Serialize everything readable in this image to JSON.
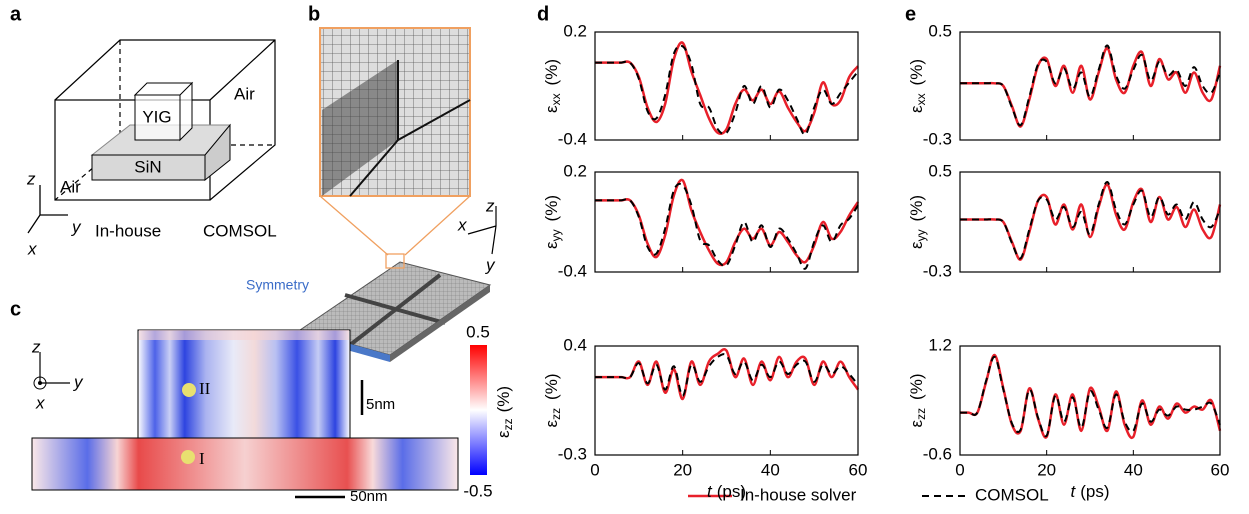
{
  "panel_a": {
    "label": "a",
    "box_top": "YIG",
    "slab": "SiN",
    "air_top": "Air",
    "air_bottom": "Air",
    "axes": [
      "z",
      "y",
      "x"
    ],
    "left_caption": "In-house",
    "right_caption": "COMSOL"
  },
  "panel_b": {
    "label": "b",
    "axes": [
      "z",
      "x",
      "y"
    ],
    "symmetry": "Symmetry"
  },
  "panel_c": {
    "label": "c",
    "axes": [
      "z",
      "y",
      "x"
    ],
    "point_top": "II",
    "point_bottom": "I",
    "scale_vertical": "5nm",
    "scale_horizontal": "50nm",
    "colorbar_max": "0.5",
    "colorbar_min": "-0.5",
    "colorbar_label": {
      "symbol": "ε",
      "sub": "zz",
      "unit": "(%)"
    }
  },
  "chart_panels": [
    "d",
    "e"
  ],
  "chart_data": [
    {
      "type": "line",
      "ylabel": {
        "symbol": "ε",
        "sub": "xx",
        "unit": "(%)"
      },
      "x": [
        0,
        2,
        4,
        6,
        8,
        10,
        12,
        14,
        16,
        18,
        20,
        22,
        24,
        26,
        28,
        30,
        32,
        34,
        36,
        38,
        40,
        42,
        44,
        46,
        48,
        50,
        52,
        54,
        56,
        58,
        60
      ],
      "xlim": [
        0,
        60
      ],
      "xticks": [
        0,
        20,
        40,
        60
      ],
      "ylim": [
        -0.4,
        0.2
      ],
      "yticks": [
        -0.4,
        0.2
      ],
      "series": [
        {
          "name": "In-house solver",
          "color": "#e8202a",
          "values": [
            0.03,
            0.03,
            0.03,
            0.03,
            0.03,
            -0.05,
            -0.22,
            -0.3,
            -0.2,
            0.05,
            0.14,
            -0.02,
            -0.15,
            -0.28,
            -0.36,
            -0.34,
            -0.2,
            -0.12,
            -0.18,
            -0.12,
            -0.2,
            -0.13,
            -0.22,
            -0.3,
            -0.35,
            -0.25,
            -0.08,
            -0.2,
            -0.18,
            -0.05,
            0.01
          ]
        },
        {
          "name": "COMSOL",
          "color": "#000000",
          "dash": "dashed",
          "values": [
            0.03,
            0.03,
            0.03,
            0.03,
            0.03,
            -0.06,
            -0.24,
            -0.28,
            -0.15,
            0.08,
            0.12,
            0.02,
            -0.2,
            -0.22,
            -0.34,
            -0.36,
            -0.25,
            -0.1,
            -0.2,
            -0.1,
            -0.22,
            -0.12,
            -0.18,
            -0.28,
            -0.37,
            -0.22,
            -0.12,
            -0.2,
            -0.14,
            -0.08,
            -0.02
          ]
        }
      ]
    },
    {
      "type": "line",
      "ylabel": {
        "symbol": "ε",
        "sub": "yy",
        "unit": "(%)"
      },
      "x": [
        0,
        2,
        4,
        6,
        8,
        10,
        12,
        14,
        16,
        18,
        20,
        22,
        24,
        26,
        28,
        30,
        32,
        34,
        36,
        38,
        40,
        42,
        44,
        46,
        48,
        50,
        52,
        54,
        56,
        58,
        60
      ],
      "xlim": [
        0,
        60
      ],
      "xticks": [
        0,
        20,
        40,
        60
      ],
      "ylim": [
        -0.4,
        0.2
      ],
      "yticks": [
        -0.4,
        0.2
      ],
      "series": [
        {
          "color": "#e8202a",
          "values": [
            0.03,
            0.03,
            0.03,
            0.03,
            0.03,
            -0.06,
            -0.23,
            -0.31,
            -0.18,
            0.06,
            0.15,
            -0.03,
            -0.16,
            -0.27,
            -0.35,
            -0.34,
            -0.22,
            -0.14,
            -0.2,
            -0.14,
            -0.24,
            -0.16,
            -0.22,
            -0.3,
            -0.34,
            -0.24,
            -0.1,
            -0.2,
            -0.16,
            -0.06,
            0.02
          ]
        },
        {
          "color": "#000000",
          "dash": "dashed",
          "values": [
            0.03,
            0.03,
            0.03,
            0.03,
            0.03,
            -0.07,
            -0.25,
            -0.29,
            -0.14,
            0.09,
            0.12,
            0.0,
            -0.21,
            -0.24,
            -0.33,
            -0.36,
            -0.24,
            -0.1,
            -0.22,
            -0.12,
            -0.25,
            -0.14,
            -0.2,
            -0.29,
            -0.38,
            -0.22,
            -0.12,
            -0.22,
            -0.12,
            -0.08,
            0.0
          ]
        }
      ]
    },
    {
      "type": "line",
      "ylabel": {
        "symbol": "ε",
        "sub": "zz",
        "unit": "(%)"
      },
      "xlabel": {
        "var": "t",
        "unit": "(ps)"
      },
      "x": [
        0,
        2,
        4,
        6,
        8,
        10,
        12,
        14,
        16,
        18,
        20,
        22,
        24,
        26,
        28,
        30,
        32,
        34,
        36,
        38,
        40,
        42,
        44,
        46,
        48,
        50,
        52,
        54,
        56,
        58,
        60
      ],
      "xlim": [
        0,
        60
      ],
      "xticks": [
        0,
        20,
        40,
        60
      ],
      "ylim": [
        -0.3,
        0.4
      ],
      "yticks": [
        -0.3,
        0.4
      ],
      "series": [
        {
          "color": "#e8202a",
          "values": [
            0.2,
            0.2,
            0.2,
            0.2,
            0.2,
            0.3,
            0.15,
            0.3,
            0.1,
            0.25,
            0.06,
            0.3,
            0.15,
            0.3,
            0.35,
            0.37,
            0.2,
            0.32,
            0.15,
            0.3,
            0.18,
            0.33,
            0.2,
            0.3,
            0.32,
            0.15,
            0.3,
            0.2,
            0.3,
            0.2,
            0.12
          ]
        },
        {
          "color": "#000000",
          "dash": "dashed",
          "values": [
            0.2,
            0.2,
            0.2,
            0.2,
            0.2,
            0.29,
            0.16,
            0.28,
            0.12,
            0.27,
            0.08,
            0.28,
            0.17,
            0.27,
            0.33,
            0.34,
            0.22,
            0.3,
            0.18,
            0.28,
            0.2,
            0.3,
            0.22,
            0.28,
            0.3,
            0.17,
            0.28,
            0.22,
            0.27,
            0.22,
            0.15
          ]
        }
      ]
    },
    {
      "type": "line",
      "ylabel": {
        "symbol": "ε",
        "sub": "xx",
        "unit": "(%)"
      },
      "x": [
        0,
        2,
        4,
        6,
        8,
        10,
        12,
        14,
        16,
        18,
        20,
        22,
        24,
        26,
        28,
        30,
        32,
        34,
        36,
        38,
        40,
        42,
        44,
        46,
        48,
        50,
        52,
        54,
        56,
        58,
        60
      ],
      "xlim": [
        0,
        60
      ],
      "xticks": [
        0,
        20,
        40,
        60
      ],
      "ylim": [
        -0.3,
        0.5
      ],
      "yticks": [
        -0.3,
        0.5
      ],
      "series": [
        {
          "color": "#e8202a",
          "values": [
            0.12,
            0.12,
            0.12,
            0.12,
            0.12,
            0.1,
            -0.05,
            -0.2,
            0.0,
            0.25,
            0.3,
            0.1,
            0.25,
            0.05,
            0.25,
            0.0,
            0.2,
            0.38,
            0.15,
            0.05,
            0.25,
            0.35,
            0.1,
            0.3,
            0.15,
            0.2,
            0.05,
            0.2,
            0.05,
            0.0,
            0.25
          ]
        },
        {
          "color": "#000000",
          "dash": "dashed",
          "values": [
            0.12,
            0.12,
            0.12,
            0.12,
            0.12,
            0.1,
            -0.06,
            -0.19,
            0.02,
            0.26,
            0.28,
            0.12,
            0.23,
            0.08,
            0.2,
            0.02,
            0.22,
            0.4,
            0.18,
            0.08,
            0.22,
            0.33,
            0.14,
            0.28,
            0.18,
            0.22,
            0.1,
            0.24,
            0.1,
            0.05,
            0.2
          ]
        }
      ]
    },
    {
      "type": "line",
      "ylabel": {
        "symbol": "ε",
        "sub": "yy",
        "unit": "(%)"
      },
      "x": [
        0,
        2,
        4,
        6,
        8,
        10,
        12,
        14,
        16,
        18,
        20,
        22,
        24,
        26,
        28,
        30,
        32,
        34,
        36,
        38,
        40,
        42,
        44,
        46,
        48,
        50,
        52,
        54,
        56,
        58,
        60
      ],
      "xlim": [
        0,
        60
      ],
      "xticks": [
        0,
        20,
        40,
        60
      ],
      "ylim": [
        -0.3,
        0.5
      ],
      "yticks": [
        -0.3,
        0.5
      ],
      "series": [
        {
          "color": "#e8202a",
          "values": [
            0.12,
            0.12,
            0.12,
            0.12,
            0.12,
            0.1,
            -0.06,
            -0.2,
            0.02,
            0.27,
            0.3,
            0.08,
            0.24,
            0.04,
            0.24,
            -0.02,
            0.22,
            0.4,
            0.16,
            0.04,
            0.26,
            0.36,
            0.1,
            0.3,
            0.12,
            0.22,
            0.06,
            0.2,
            0.04,
            -0.02,
            0.24
          ]
        },
        {
          "color": "#000000",
          "dash": "dashed",
          "values": [
            0.12,
            0.12,
            0.12,
            0.12,
            0.12,
            0.1,
            -0.07,
            -0.19,
            0.04,
            0.27,
            0.28,
            0.12,
            0.22,
            0.06,
            0.18,
            0.0,
            0.24,
            0.42,
            0.2,
            0.08,
            0.24,
            0.35,
            0.14,
            0.3,
            0.16,
            0.24,
            0.12,
            0.26,
            0.12,
            0.06,
            0.2
          ]
        }
      ]
    },
    {
      "type": "line",
      "ylabel": {
        "symbol": "ε",
        "sub": "zz",
        "unit": "(%)"
      },
      "xlabel": {
        "var": "t",
        "unit": "(ps)"
      },
      "x": [
        0,
        2,
        4,
        6,
        8,
        10,
        12,
        14,
        16,
        18,
        20,
        22,
        24,
        26,
        28,
        30,
        32,
        34,
        36,
        38,
        40,
        42,
        44,
        46,
        48,
        50,
        52,
        54,
        56,
        58,
        60
      ],
      "xlim": [
        0,
        60
      ],
      "xticks": [
        0,
        20,
        40,
        60
      ],
      "ylim": [
        -0.6,
        1.2
      ],
      "yticks": [
        -0.6,
        1.2
      ],
      "series": [
        {
          "color": "#e8202a",
          "values": [
            0.1,
            0.1,
            0.1,
            0.6,
            1.05,
            0.5,
            -0.1,
            -0.2,
            0.5,
            0.0,
            -0.3,
            0.4,
            -0.1,
            0.4,
            -0.2,
            0.5,
            0.2,
            -0.2,
            0.45,
            -0.1,
            -0.3,
            0.3,
            -0.1,
            0.2,
            0.0,
            0.25,
            0.1,
            0.2,
            0.15,
            0.3,
            -0.2
          ]
        },
        {
          "color": "#000000",
          "dash": "dashed",
          "values": [
            0.1,
            0.1,
            0.1,
            0.62,
            1.02,
            0.48,
            -0.08,
            -0.18,
            0.48,
            0.02,
            -0.28,
            0.38,
            -0.05,
            0.35,
            -0.15,
            0.45,
            0.15,
            -0.15,
            0.4,
            -0.05,
            -0.2,
            0.25,
            -0.05,
            0.15,
            0.05,
            0.2,
            0.15,
            0.15,
            0.2,
            0.25,
            -0.1
          ]
        }
      ]
    }
  ]
}
